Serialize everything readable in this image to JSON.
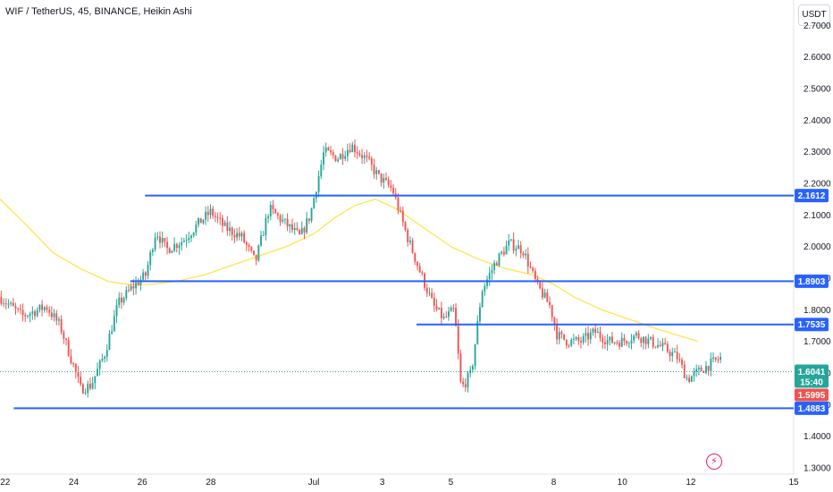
{
  "header": {
    "title": "WIF / TetherUS, 45, BINANCE, Heikin Ashi"
  },
  "axis": {
    "currency": "USDT"
  },
  "flash_icon": "lightning-icon",
  "colors": {
    "up": "#26a69a",
    "down": "#ef5350",
    "line": "#2962ff",
    "ma": "#ffe44d",
    "wick": "#5d606b"
  },
  "chart_data": {
    "type": "candlestick",
    "style": "Heikin Ashi",
    "y_ticks": [
      "2.7000",
      "2.6000",
      "2.5000",
      "2.4000",
      "2.3000",
      "2.2000",
      "2.1000",
      "2.0000",
      "1.9000",
      "1.8000",
      "1.7000",
      "1.6000",
      "1.5000",
      "1.4000",
      "1.3000"
    ],
    "ylim": [
      1.28,
      2.78
    ],
    "x_ticks": [
      "22",
      "24",
      "26",
      "28",
      "Jul",
      "3",
      "5",
      "8",
      "10",
      "12",
      "15"
    ],
    "x_tick_pos": [
      0,
      2,
      4,
      6,
      9,
      11,
      13,
      16,
      18,
      20,
      23
    ],
    "xlim": [
      -0.15,
      23.0
    ],
    "grid": false,
    "levels": [
      {
        "label": "2.1612",
        "value": 2.1612,
        "x_start": 4.08
      },
      {
        "label": "1.8903",
        "value": 1.8903,
        "x_start": 3.65
      },
      {
        "label": "1.7535",
        "value": 1.7535,
        "x_start": 12.0
      },
      {
        "label": "1.4883",
        "value": 1.4883,
        "x_start": 0.25
      }
    ],
    "current_price": {
      "label": "1.6041",
      "value": 1.6041,
      "countdown": "15:40"
    },
    "prev_price": {
      "label": "1.5995",
      "value": 1.5995
    },
    "moving_average": {
      "x": [
        -0.15,
        0.6,
        1.4,
        2.2,
        3.0,
        3.6,
        4.2,
        5.0,
        5.8,
        6.6,
        7.4,
        8.2,
        9.0,
        9.6,
        10.2,
        10.8,
        11.4,
        12.2,
        13.0,
        13.8,
        14.6,
        15.4,
        16.0,
        16.6,
        17.4,
        18.2,
        19.0,
        19.6,
        20.2
      ],
      "y": [
        2.15,
        2.07,
        1.98,
        1.93,
        1.89,
        1.88,
        1.88,
        1.89,
        1.91,
        1.94,
        1.97,
        2.0,
        2.04,
        2.09,
        2.13,
        2.15,
        2.12,
        2.06,
        2.0,
        1.96,
        1.93,
        1.91,
        1.88,
        1.84,
        1.8,
        1.77,
        1.74,
        1.72,
        1.7
      ]
    },
    "price_path": {
      "x": [
        -0.15,
        0.5,
        1.2,
        1.6,
        2.0,
        2.2,
        2.5,
        2.9,
        3.3,
        3.7,
        4.1,
        4.4,
        4.7,
        5.2,
        5.7,
        6.0,
        6.4,
        6.9,
        7.3,
        7.7,
        8.1,
        8.6,
        8.9,
        9.3,
        9.7,
        10.1,
        10.5,
        10.9,
        11.3,
        11.7,
        12.1,
        12.5,
        12.8,
        13.1,
        13.3,
        13.6,
        13.9,
        14.3,
        14.7,
        15.1,
        15.5,
        15.9,
        16.1,
        16.4,
        16.8,
        17.2,
        17.6,
        18.0,
        18.4,
        18.8,
        19.2,
        19.6,
        19.9,
        20.3,
        20.6,
        20.9
      ],
      "y": [
        1.84,
        1.78,
        1.81,
        1.75,
        1.62,
        1.55,
        1.56,
        1.66,
        1.82,
        1.87,
        1.91,
        2.05,
        1.99,
        2.02,
        2.08,
        2.11,
        2.06,
        2.03,
        1.95,
        2.12,
        2.08,
        2.03,
        2.1,
        2.3,
        2.28,
        2.32,
        2.28,
        2.22,
        2.18,
        2.04,
        1.92,
        1.81,
        1.77,
        1.8,
        1.55,
        1.6,
        1.86,
        1.95,
        2.01,
        1.99,
        1.88,
        1.81,
        1.72,
        1.7,
        1.7,
        1.73,
        1.7,
        1.7,
        1.72,
        1.7,
        1.68,
        1.65,
        1.58,
        1.61,
        1.63,
        1.65
      ]
    }
  }
}
